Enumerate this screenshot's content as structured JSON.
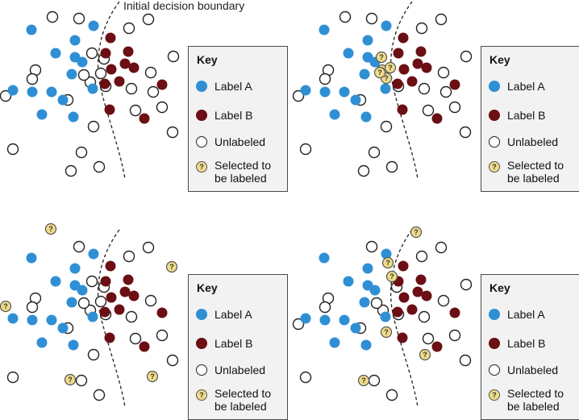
{
  "boundary_label": "Initial decision boundary",
  "key": {
    "title": "Key",
    "label_a": "Label A",
    "label_b": "Label B",
    "unlabeled": "Unlabeled",
    "selected_line1": "Selected to",
    "selected_line2": "be labeled",
    "question_mark": "?"
  },
  "colors": {
    "label_a": "#2f8fd5",
    "label_b": "#6b0f14",
    "unlabeled_fill": "#ffffff",
    "unlabeled_stroke": "#222222",
    "selected_fill": "#efdc8a",
    "key_background": "#f2f2f2"
  },
  "panels": [
    {
      "name": "top-left",
      "selection": "none"
    },
    {
      "name": "top-right",
      "selection": "near-boundary"
    },
    {
      "name": "bottom-left",
      "selection": "random"
    },
    {
      "name": "bottom-right",
      "selection": "mixed"
    }
  ]
}
